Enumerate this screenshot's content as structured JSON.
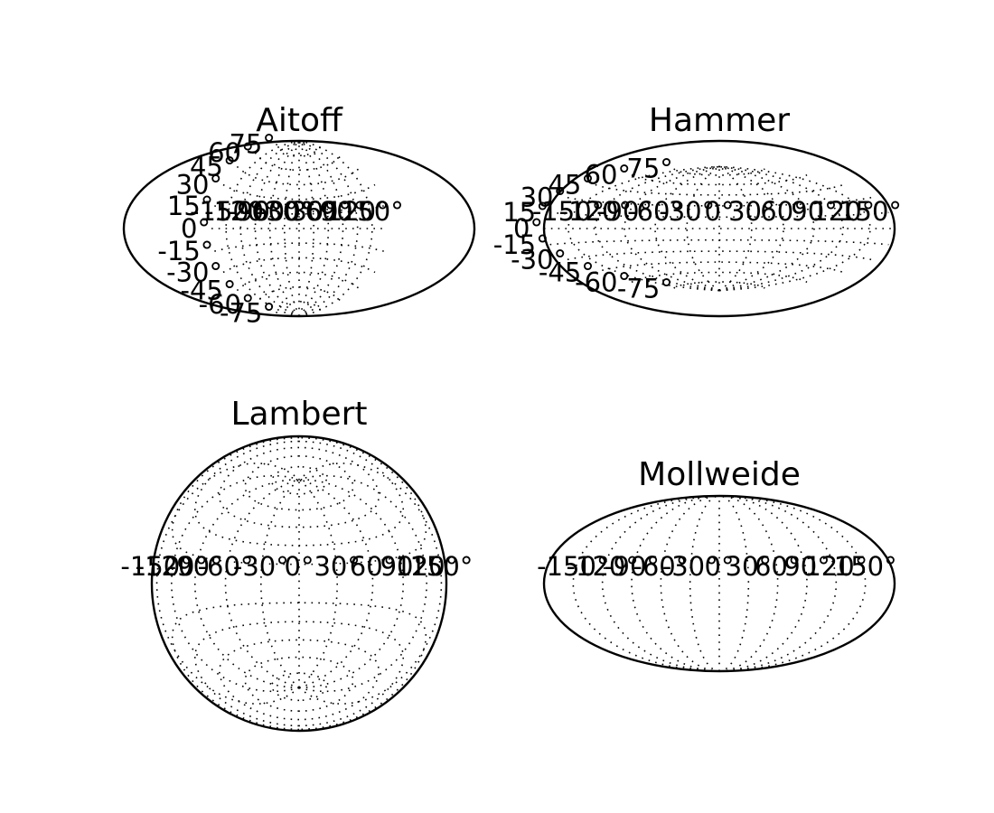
{
  "chart_data": [
    {
      "type": "map-projection",
      "projection": "aitoff",
      "title": "Aitoff",
      "grid": true,
      "xtick_labels": [
        "-150°",
        "-120°",
        "-90°",
        "-60°",
        "-30°",
        "0°",
        "30°",
        "60°",
        "90°",
        "120°",
        "150°"
      ],
      "ytick_labels": [
        "-75°",
        "-60°",
        "-45°",
        "-30°",
        "-15°",
        "0°",
        "15°",
        "30°",
        "45°",
        "60°",
        "75°"
      ]
    },
    {
      "type": "map-projection",
      "projection": "hammer",
      "title": "Hammer",
      "grid": true,
      "xtick_labels": [
        "-150°",
        "-120°",
        "-90°",
        "-60°",
        "-30°",
        "0°",
        "30°",
        "60°",
        "90°",
        "120°",
        "150°"
      ],
      "ytick_labels": [
        "-75°",
        "-60°",
        "-45°",
        "-30°",
        "-15°",
        "0°",
        "15°",
        "30°",
        "45°",
        "60°",
        "75°"
      ]
    },
    {
      "type": "map-projection",
      "projection": "lambert",
      "title": "Lambert",
      "grid": true,
      "xtick_labels": [
        "-150°",
        "-120°",
        "-90°",
        "-60°",
        "-30°",
        "0°",
        "30°",
        "60°",
        "90°",
        "120°",
        "150°"
      ],
      "ytick_labels": []
    },
    {
      "type": "map-projection",
      "projection": "mollweide",
      "title": "Mollweide",
      "grid": true,
      "xtick_labels": [
        "-150°",
        "-120°",
        "-90°",
        "-60°",
        "-30°",
        "0°",
        "30°",
        "60°",
        "90°",
        "120°",
        "150°"
      ],
      "ytick_labels": []
    }
  ]
}
